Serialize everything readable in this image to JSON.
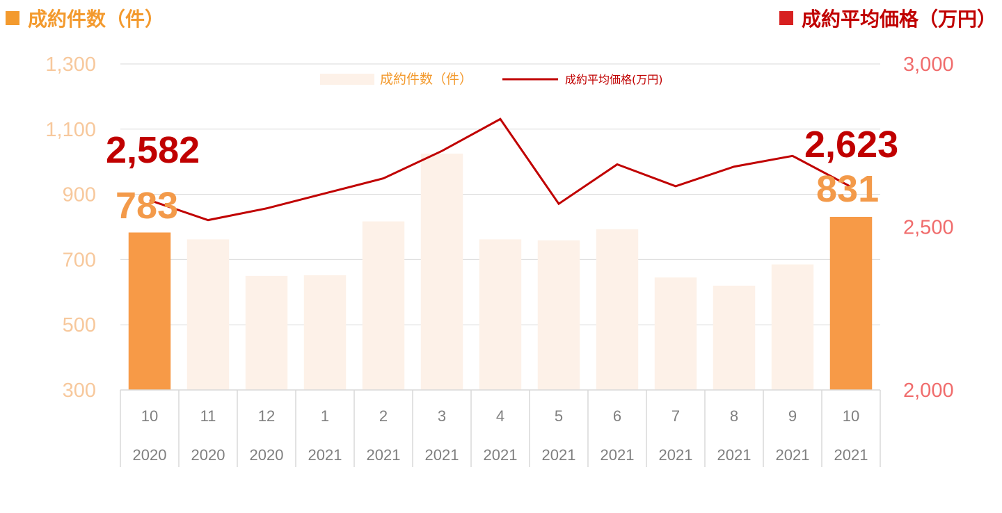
{
  "titles": {
    "left": "成約件数（件）",
    "right": "成約平均価格（万円）"
  },
  "colors": {
    "bar_highlight": "#F79A47",
    "bar_normal": "#FDF1E8",
    "line": "#C00000",
    "left_axis": "#F7C89C",
    "right_axis": "#F06C6C",
    "grid": "#D9D9D9",
    "title_left": "#F39A2E",
    "title_right": "#C00000"
  },
  "chart_data": {
    "type": "bar+line",
    "categories": [
      {
        "month": "10",
        "year": "2020"
      },
      {
        "month": "11",
        "year": "2020"
      },
      {
        "month": "12",
        "year": "2020"
      },
      {
        "month": "1",
        "year": "2021"
      },
      {
        "month": "2",
        "year": "2021"
      },
      {
        "month": "3",
        "year": "2021"
      },
      {
        "month": "4",
        "year": "2021"
      },
      {
        "month": "5",
        "year": "2021"
      },
      {
        "month": "6",
        "year": "2021"
      },
      {
        "month": "7",
        "year": "2021"
      },
      {
        "month": "8",
        "year": "2021"
      },
      {
        "month": "9",
        "year": "2021"
      },
      {
        "month": "10",
        "year": "2021"
      }
    ],
    "series": [
      {
        "name": "成約件数（件）",
        "type": "bar",
        "axis": "left",
        "values": [
          783,
          762,
          650,
          652,
          817,
          1025,
          762,
          759,
          793,
          645,
          620,
          685,
          831
        ],
        "highlight": [
          true,
          false,
          false,
          false,
          false,
          false,
          false,
          false,
          false,
          false,
          false,
          false,
          true
        ]
      },
      {
        "name": "成約平均価格(万円)",
        "type": "line",
        "axis": "right",
        "values": [
          2582,
          2521,
          2557,
          2603,
          2649,
          2733,
          2831,
          2571,
          2692,
          2625,
          2685,
          2718,
          2623
        ]
      }
    ],
    "left_axis": {
      "min": 300,
      "max": 1300,
      "ticks": [
        "300",
        "500",
        "700",
        "900",
        "1,100",
        "1,300"
      ]
    },
    "right_axis": {
      "min": 2000,
      "max": 3000,
      "ticks": [
        "2,000",
        "2,500",
        "3,000"
      ]
    },
    "grid": true,
    "legend_position": "top-center",
    "callouts": {
      "line_first": "2,582",
      "line_last": "2,623",
      "bar_first": "783",
      "bar_last": "831"
    }
  }
}
